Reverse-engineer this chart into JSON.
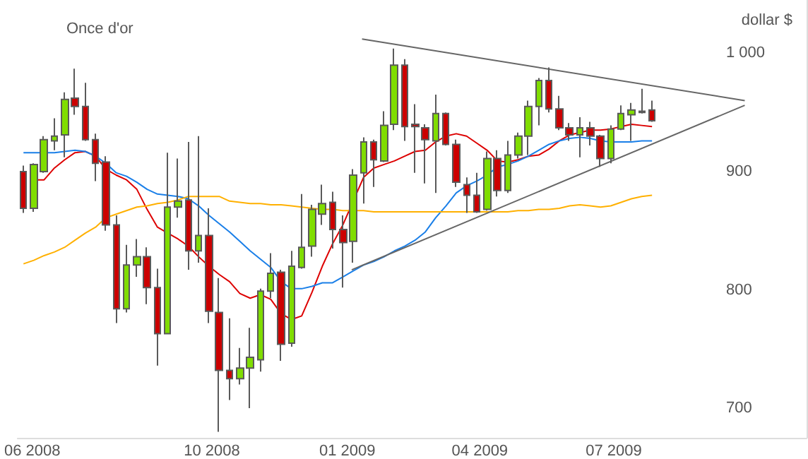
{
  "chart_data": {
    "type": "candlestick",
    "title": "Once d'or",
    "ylabel": "dollar $",
    "x": [
      "2008-05-26",
      "2008-06-02",
      "2008-06-09",
      "2008-06-16",
      "2008-06-23",
      "2008-06-30",
      "2008-07-07",
      "2008-07-14",
      "2008-07-21",
      "2008-07-28",
      "2008-08-04",
      "2008-08-11",
      "2008-08-18",
      "2008-08-25",
      "2008-09-01",
      "2008-09-08",
      "2008-09-15",
      "2008-09-22",
      "2008-09-29",
      "2008-10-06",
      "2008-10-13",
      "2008-10-20",
      "2008-10-27",
      "2008-11-03",
      "2008-11-10",
      "2008-11-17",
      "2008-11-24",
      "2008-12-01",
      "2008-12-08",
      "2008-12-15",
      "2008-12-22",
      "2008-12-29",
      "2009-01-05",
      "2009-01-12",
      "2009-01-19",
      "2009-01-26",
      "2009-02-02",
      "2009-02-09",
      "2009-02-16",
      "2009-02-23",
      "2009-03-02",
      "2009-03-09",
      "2009-03-16",
      "2009-03-23",
      "2009-03-30",
      "2009-04-06",
      "2009-04-13",
      "2009-04-20",
      "2009-04-27",
      "2009-05-04",
      "2009-05-11",
      "2009-05-18",
      "2009-05-25",
      "2009-06-01",
      "2009-06-08",
      "2009-06-15",
      "2009-06-22",
      "2009-06-29",
      "2009-07-06",
      "2009-07-13",
      "2009-07-20",
      "2009-07-27"
    ],
    "series": [
      {
        "ohlc": [
          [
            900,
            905,
            865,
            869
          ],
          [
            869,
            907,
            866,
            906
          ],
          [
            900,
            930,
            899,
            927
          ],
          [
            926,
            945,
            918,
            930
          ],
          [
            931,
            967,
            912,
            961
          ],
          [
            962,
            987,
            948,
            955
          ],
          [
            955,
            975,
            926,
            927
          ],
          [
            927,
            932,
            892,
            907
          ],
          [
            908,
            913,
            850,
            855
          ],
          [
            855,
            863,
            772,
            784
          ],
          [
            784,
            838,
            781,
            821
          ],
          [
            821,
            843,
            811,
            828
          ],
          [
            828,
            836,
            788,
            802
          ],
          [
            802,
            818,
            736,
            763
          ],
          [
            763,
            916,
            763,
            870
          ],
          [
            870,
            911,
            861,
            875
          ],
          [
            876,
            925,
            817,
            833
          ],
          [
            833,
            930,
            823,
            846
          ],
          [
            846,
            869,
            772,
            782
          ],
          [
            781,
            810,
            680,
            732
          ],
          [
            732,
            776,
            707,
            725
          ],
          [
            725,
            751,
            720,
            734
          ],
          [
            734,
            768,
            700,
            743
          ],
          [
            741,
            801,
            731,
            799
          ],
          [
            799,
            831,
            793,
            814
          ],
          [
            815,
            817,
            740,
            754
          ],
          [
            755,
            833,
            752,
            820
          ],
          [
            819,
            881,
            818,
            836
          ],
          [
            837,
            872,
            828,
            868
          ],
          [
            864,
            889,
            855,
            873
          ],
          [
            874,
            883,
            835,
            851
          ],
          [
            851,
            863,
            802,
            840
          ],
          [
            841,
            902,
            823,
            897
          ],
          [
            899,
            929,
            873,
            925
          ],
          [
            925,
            927,
            887,
            910
          ],
          [
            909,
            951,
            908,
            939
          ],
          [
            940,
            1004,
            935,
            990
          ],
          [
            990,
            995,
            926,
            938
          ],
          [
            940,
            957,
            899,
            938
          ],
          [
            937,
            940,
            890,
            927
          ],
          [
            926,
            965,
            882,
            949
          ],
          [
            949,
            950,
            922,
            923
          ],
          [
            923,
            927,
            887,
            891
          ],
          [
            889,
            895,
            865,
            880
          ],
          [
            880,
            899,
            865,
            866
          ],
          [
            868,
            917,
            867,
            911
          ],
          [
            911,
            918,
            879,
            884
          ],
          [
            884,
            926,
            882,
            914
          ],
          [
            914,
            933,
            911,
            930
          ],
          [
            930,
            960,
            914,
            955
          ],
          [
            955,
            979,
            939,
            977
          ],
          [
            977,
            988,
            950,
            953
          ],
          [
            953,
            964,
            935,
            937
          ],
          [
            937,
            941,
            926,
            931
          ],
          [
            931,
            946,
            912,
            937
          ],
          [
            937,
            942,
            922,
            930
          ],
          [
            930,
            931,
            904,
            911
          ],
          [
            911,
            939,
            907,
            936
          ],
          [
            936,
            956,
            935,
            949
          ],
          [
            948,
            958,
            926,
            952
          ],
          [
            951,
            970,
            949,
            950
          ],
          [
            952,
            960,
            942,
            943
          ]
        ],
        "colors": [
          "#cc0000",
          "#80dd00",
          "#80dd00",
          "#80dd00",
          "#80dd00",
          "#cc0000",
          "#cc0000",
          "#cc0000",
          "#cc0000",
          "#cc0000",
          "#80dd00",
          "#80dd00",
          "#cc0000",
          "#cc0000",
          "#80dd00",
          "#80dd00",
          "#cc0000",
          "#80dd00",
          "#cc0000",
          "#cc0000",
          "#cc0000",
          "#80dd00",
          "#80dd00",
          "#80dd00",
          "#80dd00",
          "#cc0000",
          "#80dd00",
          "#80dd00",
          "#80dd00",
          "#80dd00",
          "#cc0000",
          "#cc0000",
          "#80dd00",
          "#80dd00",
          "#cc0000",
          "#80dd00",
          "#80dd00",
          "#cc0000",
          "#cc0000",
          "#cc0000",
          "#80dd00",
          "#cc0000",
          "#cc0000",
          "#cc0000",
          "#cc0000",
          "#80dd00",
          "#cc0000",
          "#80dd00",
          "#80dd00",
          "#80dd00",
          "#80dd00",
          "#cc0000",
          "#cc0000",
          "#cc0000",
          "#80dd00",
          "#cc0000",
          "#cc0000",
          "#80dd00",
          "#80dd00",
          "#80dd00",
          "#cc0000",
          "#cc0000"
        ]
      },
      {
        "type": "line",
        "color": "#dd0000",
        "values": [
          null,
          893,
          893,
          903,
          910,
          916,
          917,
          913,
          902,
          897,
          893,
          885,
          868,
          853,
          848,
          843,
          837,
          828,
          820,
          813,
          807,
          797,
          793,
          796,
          792,
          780,
          775,
          778,
          798,
          820,
          839,
          855,
          null,
          895,
          903,
          906,
          909,
          913,
          917,
          918,
          925,
          930,
          932,
          930,
          924,
          918,
          909,
          908,
          910,
          913,
          914,
          919,
          926,
          931,
          933,
          935,
          935,
          936,
          938,
          940,
          939,
          938
        ]
      },
      {
        "type": "line",
        "color": "#1a7fe8",
        "values": [
          916,
          916,
          916,
          916,
          917,
          918,
          917,
          913,
          907,
          899,
          896,
          891,
          885,
          881,
          880,
          879,
          877,
          871,
          863,
          856,
          849,
          841,
          833,
          826,
          819,
          807,
          801,
          801,
          803,
          806,
          806,
          811,
          816,
          821,
          824,
          828,
          833,
          837,
          842,
          849,
          861,
          871,
          882,
          888,
          892,
          897,
          904,
          906,
          909,
          913,
          918,
          923,
          926,
          928,
          929,
          928,
          926,
          925,
          925,
          925,
          926,
          926
        ]
      },
      {
        "type": "line",
        "color": "#ffb000",
        "values": [
          822,
          825,
          829,
          832,
          836,
          842,
          848,
          853,
          861,
          864,
          867,
          870,
          871,
          873,
          874,
          876,
          879,
          879,
          879,
          879,
          875,
          874,
          873,
          873,
          872,
          872,
          871,
          870,
          869,
          868,
          868,
          867,
          867,
          867,
          866,
          866,
          866,
          866,
          866,
          866,
          866,
          866,
          866,
          866,
          866,
          866,
          866,
          866,
          867,
          867,
          868,
          868,
          869,
          871,
          872,
          871,
          870,
          871,
          874,
          877,
          879,
          880
        ]
      },
      {
        "type": "line",
        "color": "#666666",
        "x": [
          "2009-01-11",
          "2009-09-28"
        ],
        "values": [
          1012,
          960
        ]
      },
      {
        "type": "line",
        "color": "#666666",
        "x": [
          "2009-01-04",
          "2009-09-28"
        ],
        "values": [
          817,
          956
        ]
      }
    ],
    "xlim": [
      "2008-05-22",
      "2009-11-09"
    ],
    "xticks": [
      {
        "value": "2008-06-01",
        "label": "06 2008"
      },
      {
        "value": "2008-10-01",
        "label": "10 2008"
      },
      {
        "value": "2009-01-01",
        "label": "01 2009"
      },
      {
        "value": "2009-04-01",
        "label": "04 2009"
      },
      {
        "value": "2009-07-01",
        "label": "07 2009"
      }
    ],
    "ylim": [
      675,
      1045
    ],
    "yticks": [
      700,
      800,
      900,
      {
        "value": 1000,
        "label": "1 000"
      }
    ],
    "grid": false
  }
}
